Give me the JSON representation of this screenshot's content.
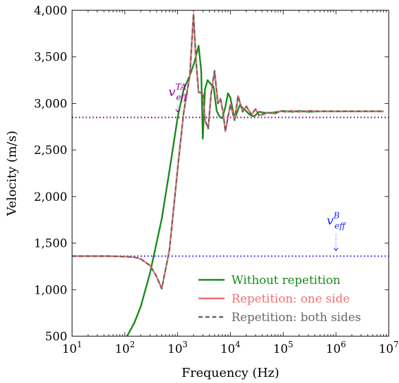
{
  "chart_data": {
    "type": "line",
    "xlabel": "Frequency (Hz)",
    "ylabel": "Velocity (m/s)",
    "xscale": "log",
    "xlim": [
      10,
      10000000
    ],
    "ylim": [
      500,
      4000
    ],
    "grid": false,
    "legend_position": "bottom-right",
    "x_tick_labels": [
      {
        "base": "10",
        "exp": "1"
      },
      {
        "base": "10",
        "exp": "2"
      },
      {
        "base": "10",
        "exp": "3"
      },
      {
        "base": "10",
        "exp": "4"
      },
      {
        "base": "10",
        "exp": "5"
      },
      {
        "base": "10",
        "exp": "6"
      },
      {
        "base": "10",
        "exp": "7"
      }
    ],
    "y_ticks": [
      500,
      1000,
      1500,
      2000,
      2500,
      3000,
      3500,
      4000
    ],
    "y_tick_labels": [
      "500",
      "1,000",
      "1,500",
      "2,000",
      "2,500",
      "3,000",
      "3,500",
      "4,000"
    ],
    "reference_lines": [
      {
        "y": 2850,
        "color": "#800080",
        "style": "dotted",
        "label_main": "v",
        "label_sub": "eff",
        "label_sup": "TA",
        "label_x": 1000,
        "label_y": 3080
      },
      {
        "y": 1360,
        "color": "#1a1aff",
        "style": "dotted",
        "label_main": "v",
        "label_sub": "eff",
        "label_sup": "B",
        "label_x": 1000000,
        "label_y": 1700
      }
    ],
    "series": [
      {
        "name": "Without repetition",
        "color": "#1a8a1a",
        "dash": "solid",
        "x": [
          110,
          150,
          200,
          300,
          500,
          700,
          1000,
          1300,
          1700,
          2100,
          2500,
          2800,
          3000,
          3300,
          3700,
          4200,
          4800,
          5500,
          6200,
          7000,
          8000,
          9000,
          10000,
          12000,
          15000,
          19000,
          23000,
          28000,
          35000,
          45000,
          60000,
          80000,
          100000,
          150000,
          200000,
          300000,
          500000,
          1000000,
          3000000,
          8000000
        ],
        "y": [
          500,
          640,
          820,
          1180,
          1760,
          2280,
          2850,
          3150,
          3300,
          3450,
          3620,
          3350,
          2620,
          3150,
          3250,
          3210,
          3180,
          2920,
          2860,
          2840,
          2960,
          3110,
          3060,
          2830,
          2980,
          2930,
          2880,
          2860,
          2910,
          2900,
          2900,
          2910,
          2920,
          2910,
          2920,
          2910,
          2915,
          2915,
          2915,
          2915
        ]
      },
      {
        "name": "Repetition: one side",
        "color": "#f26d6d",
        "dash": "solid",
        "x": [
          10,
          50,
          100,
          150,
          200,
          300,
          400,
          500,
          700,
          1000,
          1300,
          1700,
          2000,
          2200,
          2500,
          3000,
          3300,
          3800,
          4300,
          5000,
          5800,
          6500,
          7300,
          8000,
          9000,
          10000,
          12000,
          14000,
          17000,
          20000,
          25000,
          30000,
          35000,
          45000,
          55000,
          70000,
          90000,
          110000,
          150000,
          200000,
          300000,
          500000,
          1000000,
          3000000,
          8000000
        ],
        "y": [
          1360,
          1360,
          1355,
          1350,
          1330,
          1260,
          1140,
          1010,
          1430,
          2300,
          2900,
          3300,
          3960,
          3500,
          3120,
          3110,
          2820,
          2730,
          3100,
          3350,
          3000,
          3050,
          2900,
          2700,
          2850,
          2990,
          2820,
          3080,
          2910,
          2970,
          2880,
          2940,
          2870,
          2890,
          2900,
          2890,
          2920,
          2910,
          2920,
          2910,
          2920,
          2915,
          2915,
          2915,
          2915
        ]
      },
      {
        "name": "Repetition: both sides",
        "color": "#666666",
        "dash": "dashed",
        "x": [
          10,
          50,
          100,
          150,
          200,
          300,
          400,
          500,
          700,
          1000,
          1300,
          1700,
          2000,
          2200,
          2500,
          3000,
          3300,
          3800,
          4300,
          5000,
          5800,
          6500,
          7300,
          8000,
          9000,
          10000,
          12000,
          14000,
          17000,
          20000,
          25000,
          30000,
          35000,
          45000,
          55000,
          70000,
          90000,
          110000,
          150000,
          200000,
          300000,
          500000,
          1000000,
          3000000,
          8000000
        ],
        "y": [
          1360,
          1360,
          1355,
          1350,
          1330,
          1260,
          1140,
          1010,
          1430,
          2300,
          2900,
          3300,
          3960,
          3500,
          3120,
          3110,
          2820,
          2730,
          3100,
          3350,
          3000,
          3050,
          2900,
          2700,
          2850,
          2990,
          2820,
          3080,
          2910,
          2970,
          2880,
          2940,
          2870,
          2890,
          2900,
          2890,
          2920,
          2910,
          2920,
          2910,
          2920,
          2915,
          2915,
          2915,
          2915
        ]
      }
    ]
  }
}
